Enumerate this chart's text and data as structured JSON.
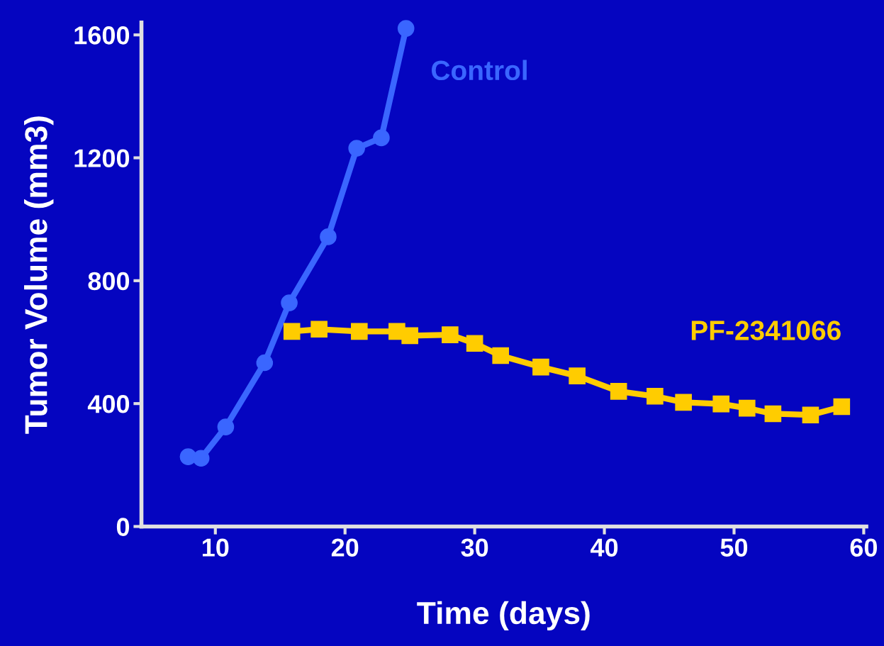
{
  "chart_data": {
    "type": "line",
    "xlabel": "Time (days)",
    "ylabel": "Tumor Volume (mm3)",
    "xlim": [
      4.3,
      60.2
    ],
    "xticks": [
      10,
      20,
      30,
      40,
      50,
      60
    ],
    "ylim": [
      0,
      1640
    ],
    "yticks": [
      0,
      400,
      800,
      1200,
      1600
    ],
    "grid": false,
    "line_style": "solid",
    "series": [
      {
        "name": "Control",
        "color": "#3a66ff",
        "marker": "circle",
        "x": [
          7.9,
          8.9,
          10.8,
          13.8,
          15.7,
          18.7,
          20.9,
          22.8,
          24.7
        ],
        "values": [
          227,
          222,
          324,
          533,
          728,
          943,
          1231,
          1265,
          1621
        ]
      },
      {
        "name": "PF-2341066",
        "color": "#ffcc00",
        "marker": "square",
        "x": [
          15.9,
          18.0,
          21.1,
          24.0,
          25.0,
          28.1,
          30.0,
          32.0,
          35.1,
          37.9,
          41.1,
          43.9,
          46.1,
          49.0,
          51.0,
          53.0,
          55.9,
          58.3
        ],
        "values": [
          635,
          642,
          635,
          635,
          621,
          624,
          596,
          556,
          519,
          490,
          440,
          424,
          404,
          399,
          385,
          367,
          363,
          390
        ]
      }
    ]
  }
}
